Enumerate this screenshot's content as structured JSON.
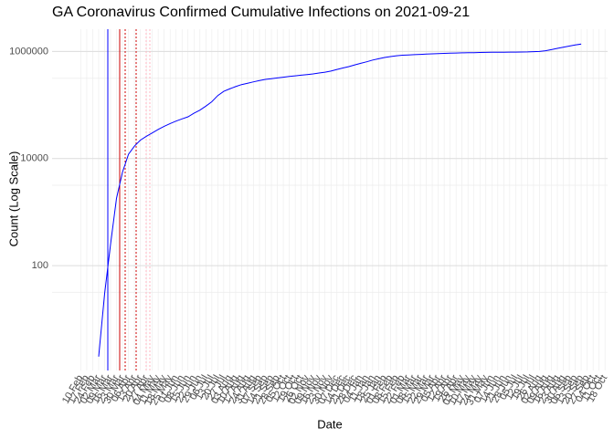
{
  "chart_data": {
    "type": "line",
    "title": "GA Coronavirus Confirmed Cumulative Infections on 2021-09-21",
    "x_label": "Date",
    "y_label": "Count (Log Scale)",
    "categories": [
      "10 Feb",
      "17 Feb",
      "24 Feb",
      "02 Mar",
      "09 Mar",
      "16 Mar",
      "23 Mar",
      "30 Mar",
      "06 Apr",
      "13 Apr",
      "20 Apr",
      "27 Apr",
      "04 May",
      "11 May",
      "18 May",
      "25 May",
      "01 Jun",
      "08 Jun",
      "15 Jun",
      "22 Jun",
      "29 Jun",
      "06 Jul",
      "13 Jul",
      "20 Jul",
      "27 Jul",
      "03 Aug",
      "10 Aug",
      "17 Aug",
      "24 Aug",
      "31 Aug",
      "07 Sep",
      "14 Sep",
      "21 Sep",
      "28 Sep",
      "05 Oct",
      "12 Oct",
      "19 Oct",
      "26 Oct",
      "02 Nov",
      "09 Nov",
      "16 Nov",
      "23 Nov",
      "30 Nov",
      "07 Dec",
      "14 Dec",
      "21 Dec",
      "28 Dec",
      "04 Jan",
      "11 Jan",
      "18 Jan",
      "25 Jan",
      "01 Feb",
      "08 Feb",
      "15 Feb",
      "22 Feb",
      "01 Mar",
      "08 Mar",
      "15 Mar",
      "22 Mar",
      "29 Mar",
      "05 Apr",
      "12 Apr",
      "19 Apr",
      "26 Apr",
      "03 May",
      "10 May",
      "17 May",
      "24 May",
      "31 May",
      "07 Jun",
      "14 Jun",
      "21 Jun",
      "28 Jun",
      "05 Jul",
      "12 Jul",
      "19 Jul",
      "26 Jul",
      "02 Aug",
      "09 Aug",
      "16 Aug",
      "23 Aug",
      "30 Aug",
      "06 Sep",
      "13 Sep",
      "20 Sep",
      "27 Sep",
      "04 Oct",
      "11 Oct",
      "18 Oct"
    ],
    "series": [
      {
        "color": "#0000ff",
        "values": [
          null,
          null,
          null,
          2,
          30,
          250,
          1800,
          5500,
          12000,
          17000,
          22000,
          26000,
          30000,
          35000,
          40000,
          45000,
          50000,
          55000,
          60000,
          70000,
          80000,
          95000,
          115000,
          150000,
          180000,
          200000,
          220000,
          240000,
          255000,
          270000,
          285000,
          300000,
          310000,
          320000,
          330000,
          340000,
          350000,
          360000,
          370000,
          380000,
          395000,
          410000,
          430000,
          460000,
          490000,
          520000,
          560000,
          600000,
          640000,
          690000,
          730000,
          770000,
          800000,
          830000,
          850000,
          860000,
          870000,
          880000,
          890000,
          900000,
          910000,
          920000,
          930000,
          935000,
          940000,
          945000,
          950000,
          955000,
          960000,
          962000,
          965000,
          968000,
          970000,
          972000,
          975000,
          980000,
          990000,
          1000000,
          1030000,
          1080000,
          1140000,
          1200000,
          1260000,
          1320000,
          1370000,
          null,
          null,
          null,
          null
        ]
      }
    ],
    "log_y": true,
    "ylim": [
      1.1,
      2600000
    ],
    "yticks": [
      100,
      10000,
      1000000
    ],
    "grid": true
  }
}
